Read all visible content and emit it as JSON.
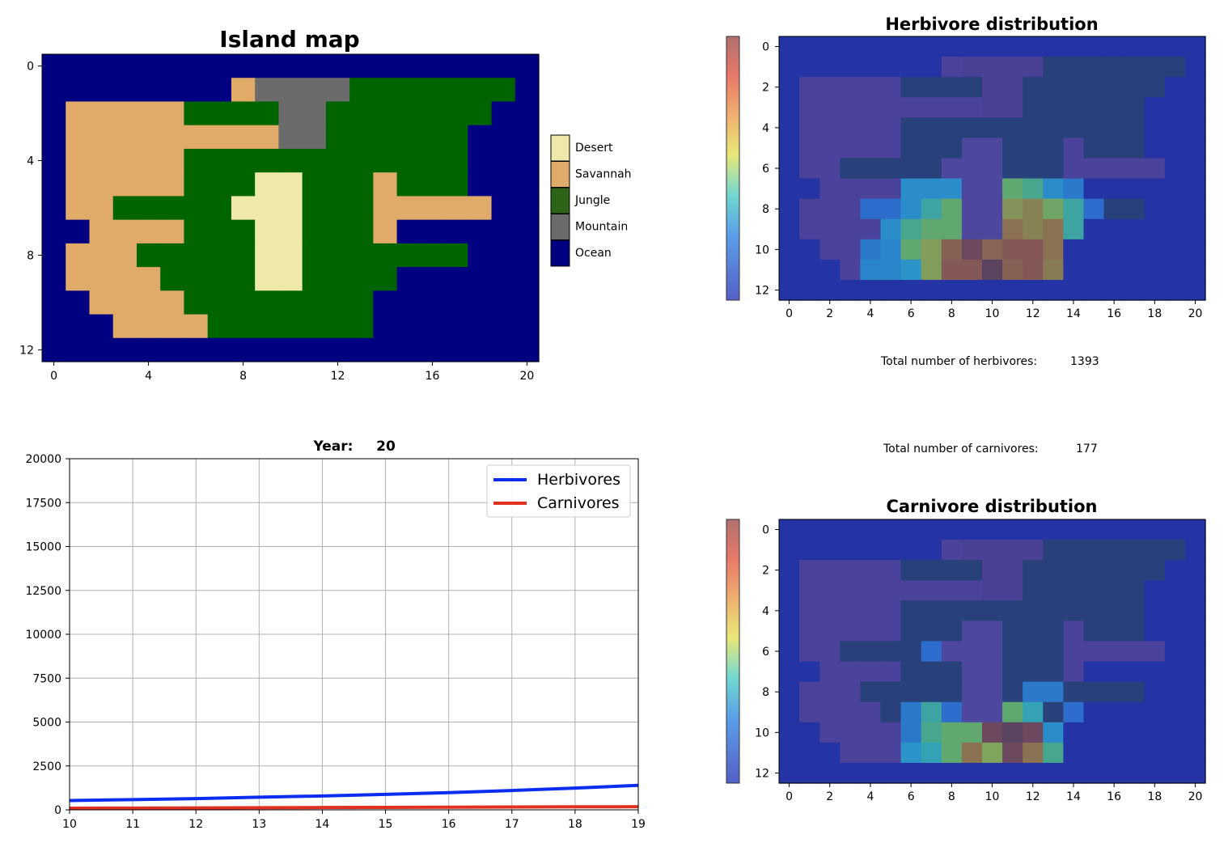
{
  "island_map": {
    "title": "Island map",
    "grid": [
      "OOOOOOOOOOOOOOOOOOOOO",
      "OOOOOOOOSMMMMJJJJJJJO",
      "OSSSSSJJJJMMJJJJJJJOO",
      "OSSSSSSSSSMMJJJJJJOOO",
      "OSSSSSJJJJJJJJJJJJOOO",
      "OSSSSSJJJDDJJJSJJJOOO",
      "OSSJJJJJDDDJJJSSSSSOO",
      "OOSSSSJJJDDJJJSOOOOOO",
      "OSSSJJJJJDDJJJJJJJOOO",
      "OSSSSJJJJDDJJJJOOOOOO",
      "OOSSSSJJJJJJJJOOOOOOO",
      "OOOSSSSJJJJJJJOOOOOOO",
      "OOOOOOOOOOOOOOOOOOOOO"
    ],
    "xticks": [
      "0",
      "4",
      "8",
      "12",
      "16",
      "20"
    ],
    "yticks": [
      "0",
      "4",
      "8",
      "12"
    ],
    "legend": [
      {
        "key": "D",
        "label": "Desert",
        "color": "#eee8aa"
      },
      {
        "key": "S",
        "label": "Savannah",
        "color": "#dfaa6a"
      },
      {
        "key": "J",
        "label": "Jungle",
        "color": "#2d6418"
      },
      {
        "key": "M",
        "label": "Mountain",
        "color": "#6b6b6b"
      },
      {
        "key": "O",
        "label": "Ocean",
        "color": "#000080"
      }
    ],
    "colors": {
      "D": "#eee8aa",
      "S": "#e0aa69",
      "J": "#006400",
      "M": "#6b6b6b",
      "O": "#000080"
    }
  },
  "herbivore_map": {
    "title": "Herbivore distribution",
    "total_label": "Total number of herbivores:",
    "total_value": "1393",
    "xticks": [
      "0",
      "2",
      "4",
      "6",
      "8",
      "10",
      "12",
      "14",
      "16",
      "18",
      "20"
    ],
    "yticks": [
      "0",
      "2",
      "4",
      "6",
      "8",
      "10",
      "12"
    ],
    "hot": [
      {
        "r": 7,
        "c": 6,
        "v": 0.2
      },
      {
        "r": 7,
        "c": 7,
        "v": 0.2
      },
      {
        "r": 7,
        "c": 8,
        "v": 0.2
      },
      {
        "r": 7,
        "c": 11,
        "v": 0.5
      },
      {
        "r": 7,
        "c": 12,
        "v": 0.4
      },
      {
        "r": 7,
        "c": 13,
        "v": 0.2
      },
      {
        "r": 7,
        "c": 14,
        "v": 0.15
      },
      {
        "r": 8,
        "c": 4,
        "v": 0.12
      },
      {
        "r": 8,
        "c": 5,
        "v": 0.12
      },
      {
        "r": 8,
        "c": 6,
        "v": 0.2
      },
      {
        "r": 8,
        "c": 7,
        "v": 0.35
      },
      {
        "r": 8,
        "c": 8,
        "v": 0.5
      },
      {
        "r": 8,
        "c": 11,
        "v": 0.65
      },
      {
        "r": 8,
        "c": 12,
        "v": 0.7
      },
      {
        "r": 8,
        "c": 13,
        "v": 0.55
      },
      {
        "r": 8,
        "c": 14,
        "v": 0.35
      },
      {
        "r": 8,
        "c": 15,
        "v": 0.12
      },
      {
        "r": 9,
        "c": 5,
        "v": 0.2
      },
      {
        "r": 9,
        "c": 6,
        "v": 0.4
      },
      {
        "r": 9,
        "c": 7,
        "v": 0.5
      },
      {
        "r": 9,
        "c": 8,
        "v": 0.5
      },
      {
        "r": 9,
        "c": 11,
        "v": 0.75
      },
      {
        "r": 9,
        "c": 12,
        "v": 0.7
      },
      {
        "r": 9,
        "c": 13,
        "v": 0.75
      },
      {
        "r": 9,
        "c": 14,
        "v": 0.35
      },
      {
        "r": 10,
        "c": 4,
        "v": 0.15
      },
      {
        "r": 10,
        "c": 5,
        "v": 0.18
      },
      {
        "r": 10,
        "c": 6,
        "v": 0.5
      },
      {
        "r": 10,
        "c": 7,
        "v": 0.62
      },
      {
        "r": 10,
        "c": 8,
        "v": 0.82
      },
      {
        "r": 10,
        "c": 9,
        "v": 0.95
      },
      {
        "r": 10,
        "c": 10,
        "v": 0.8
      },
      {
        "r": 10,
        "c": 11,
        "v": 0.85
      },
      {
        "r": 10,
        "c": 12,
        "v": 0.85
      },
      {
        "r": 10,
        "c": 13,
        "v": 0.75
      },
      {
        "r": 11,
        "c": 4,
        "v": 0.18
      },
      {
        "r": 11,
        "c": 5,
        "v": 0.18
      },
      {
        "r": 11,
        "c": 6,
        "v": 0.22
      },
      {
        "r": 11,
        "c": 7,
        "v": 0.62
      },
      {
        "r": 11,
        "c": 8,
        "v": 0.85
      },
      {
        "r": 11,
        "c": 9,
        "v": 0.85
      },
      {
        "r": 11,
        "c": 10,
        "v": 1.0
      },
      {
        "r": 11,
        "c": 11,
        "v": 0.82
      },
      {
        "r": 11,
        "c": 12,
        "v": 0.85
      },
      {
        "r": 11,
        "c": 13,
        "v": 0.72
      }
    ]
  },
  "carnivore_map": {
    "title": "Carnivore distribution",
    "total_label": "Total number of carnivores:",
    "total_value": "177",
    "xticks": [
      "0",
      "2",
      "4",
      "6",
      "8",
      "10",
      "12",
      "14",
      "16",
      "18",
      "20"
    ],
    "yticks": [
      "0",
      "2",
      "4",
      "6",
      "8",
      "10",
      "12"
    ],
    "hot": [
      {
        "r": 6,
        "c": 7,
        "v": 0.12
      },
      {
        "r": 8,
        "c": 12,
        "v": 0.15
      },
      {
        "r": 8,
        "c": 13,
        "v": 0.15
      },
      {
        "r": 9,
        "c": 6,
        "v": 0.15
      },
      {
        "r": 9,
        "c": 7,
        "v": 0.35
      },
      {
        "r": 9,
        "c": 8,
        "v": 0.12
      },
      {
        "r": 9,
        "c": 11,
        "v": 0.5
      },
      {
        "r": 9,
        "c": 12,
        "v": 0.3
      },
      {
        "r": 9,
        "c": 14,
        "v": 0.12
      },
      {
        "r": 10,
        "c": 6,
        "v": 0.15
      },
      {
        "r": 10,
        "c": 7,
        "v": 0.4
      },
      {
        "r": 10,
        "c": 8,
        "v": 0.5
      },
      {
        "r": 10,
        "c": 9,
        "v": 0.5
      },
      {
        "r": 10,
        "c": 10,
        "v": 0.95
      },
      {
        "r": 10,
        "c": 11,
        "v": 1.0
      },
      {
        "r": 10,
        "c": 12,
        "v": 0.95
      },
      {
        "r": 10,
        "c": 13,
        "v": 0.2
      },
      {
        "r": 11,
        "c": 6,
        "v": 0.22
      },
      {
        "r": 11,
        "c": 7,
        "v": 0.3
      },
      {
        "r": 11,
        "c": 8,
        "v": 0.5
      },
      {
        "r": 11,
        "c": 9,
        "v": 0.75
      },
      {
        "r": 11,
        "c": 10,
        "v": 0.6
      },
      {
        "r": 11,
        "c": 11,
        "v": 0.95
      },
      {
        "r": 11,
        "c": 12,
        "v": 0.75
      },
      {
        "r": 11,
        "c": 13,
        "v": 0.4
      }
    ]
  },
  "population_chart": {
    "title_prefix": "Year:",
    "year": "20",
    "legend": [
      {
        "label": "Herbivores",
        "color": "#0a2df0"
      },
      {
        "label": "Carnivores",
        "color": "#e03020"
      }
    ]
  },
  "chart_data": {
    "type": "line",
    "x": [
      10,
      11,
      12,
      13,
      14,
      15,
      16,
      17,
      18,
      19
    ],
    "series": [
      {
        "name": "Herbivores",
        "values": [
          530,
          580,
          640,
          720,
          790,
          880,
          980,
          1100,
          1240,
          1393
        ]
      },
      {
        "name": "Carnivores",
        "values": [
          90,
          100,
          110,
          120,
          130,
          140,
          150,
          160,
          170,
          177
        ]
      }
    ],
    "xlim": [
      10,
      19
    ],
    "ylim": [
      0,
      20000
    ],
    "xticks": [
      10,
      11,
      12,
      13,
      14,
      15,
      16,
      17,
      18,
      19
    ],
    "yticks": [
      0,
      2500,
      5000,
      7500,
      10000,
      12500,
      15000,
      17500,
      20000
    ],
    "grid": true,
    "legend_position": "top-right"
  }
}
